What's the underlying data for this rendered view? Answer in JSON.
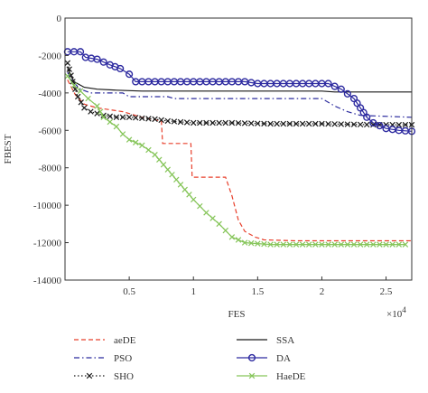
{
  "chart_data": {
    "type": "line",
    "xlabel": "FES",
    "ylabel": "FBEST",
    "x_multiplier_label": "×10",
    "x_multiplier_exp": "4",
    "xlim": [
      0,
      27000
    ],
    "ylim": [
      -14000,
      0
    ],
    "xticks": [
      {
        "value": 5000,
        "label": "0.5"
      },
      {
        "value": 10000,
        "label": "1"
      },
      {
        "value": 15000,
        "label": "1.5"
      },
      {
        "value": 20000,
        "label": "2"
      },
      {
        "value": 25000,
        "label": "2.5"
      }
    ],
    "yticks": [
      {
        "value": 0,
        "label": "0"
      },
      {
        "value": -2000,
        "label": "-2000"
      },
      {
        "value": -4000,
        "label": "-4000"
      },
      {
        "value": -6000,
        "label": "-6000"
      },
      {
        "value": -8000,
        "label": "-8000"
      },
      {
        "value": -10000,
        "label": "-10000"
      },
      {
        "value": -12000,
        "label": "-12000"
      },
      {
        "value": -14000,
        "label": "-14000"
      }
    ],
    "grid": false,
    "legend_position": "bottom",
    "series": [
      {
        "name": "aeDE",
        "color": "#e8402c",
        "style": "dashed",
        "marker": "none",
        "points": [
          [
            200,
            -3300
          ],
          [
            800,
            -4100
          ],
          [
            1500,
            -4600
          ],
          [
            2500,
            -4800
          ],
          [
            3500,
            -4900
          ],
          [
            4500,
            -5000
          ],
          [
            6000,
            -5300
          ],
          [
            7500,
            -5500
          ],
          [
            7600,
            -6700
          ],
          [
            9800,
            -6700
          ],
          [
            9900,
            -8500
          ],
          [
            12500,
            -8500
          ],
          [
            13000,
            -9500
          ],
          [
            13500,
            -10800
          ],
          [
            14000,
            -11400
          ],
          [
            14800,
            -11700
          ],
          [
            15500,
            -11850
          ],
          [
            18000,
            -11900
          ],
          [
            26000,
            -11900
          ],
          [
            27000,
            -11900
          ]
        ]
      },
      {
        "name": "PSO",
        "color": "#2b2b9e",
        "style": "dashdot",
        "marker": "none",
        "points": [
          [
            200,
            -2900
          ],
          [
            600,
            -3400
          ],
          [
            1200,
            -3800
          ],
          [
            2000,
            -4000
          ],
          [
            4500,
            -4000
          ],
          [
            5000,
            -4200
          ],
          [
            8000,
            -4200
          ],
          [
            8500,
            -4300
          ],
          [
            20000,
            -4300
          ],
          [
            21000,
            -4700
          ],
          [
            22000,
            -5000
          ],
          [
            23000,
            -5200
          ],
          [
            27000,
            -5300
          ]
        ]
      },
      {
        "name": "SHO",
        "color": "#1a1a1a",
        "style": "dotted",
        "marker": "x",
        "points": [
          [
            200,
            -2400
          ],
          [
            600,
            -3400
          ],
          [
            1000,
            -4200
          ],
          [
            1500,
            -4800
          ],
          [
            2000,
            -5000
          ],
          [
            3000,
            -5200
          ],
          [
            4000,
            -5300
          ],
          [
            5000,
            -5300
          ],
          [
            6000,
            -5350
          ],
          [
            7000,
            -5400
          ],
          [
            8000,
            -5500
          ],
          [
            10000,
            -5600
          ],
          [
            13000,
            -5600
          ],
          [
            16000,
            -5650
          ],
          [
            20000,
            -5650
          ],
          [
            24000,
            -5700
          ],
          [
            27000,
            -5700
          ]
        ]
      },
      {
        "name": "SSA",
        "color": "#1a1a1a",
        "style": "solid",
        "marker": "none",
        "points": [
          [
            200,
            -2700
          ],
          [
            700,
            -3400
          ],
          [
            1500,
            -3700
          ],
          [
            2500,
            -3800
          ],
          [
            4000,
            -3850
          ],
          [
            6000,
            -3900
          ],
          [
            9000,
            -3900
          ],
          [
            12000,
            -3900
          ],
          [
            15000,
            -3900
          ],
          [
            18000,
            -3900
          ],
          [
            20000,
            -3900
          ],
          [
            21000,
            -3950
          ],
          [
            27000,
            -3950
          ]
        ]
      },
      {
        "name": "DA",
        "color": "#2d2aa0",
        "style": "solid",
        "marker": "o",
        "points": [
          [
            200,
            -1800
          ],
          [
            1200,
            -1800
          ],
          [
            1600,
            -2100
          ],
          [
            2500,
            -2200
          ],
          [
            3500,
            -2500
          ],
          [
            4300,
            -2700
          ],
          [
            5000,
            -3000
          ],
          [
            5500,
            -3400
          ],
          [
            7500,
            -3400
          ],
          [
            10000,
            -3400
          ],
          [
            12500,
            -3400
          ],
          [
            14000,
            -3400
          ],
          [
            15000,
            -3500
          ],
          [
            17000,
            -3500
          ],
          [
            19000,
            -3500
          ],
          [
            20500,
            -3500
          ],
          [
            21500,
            -3800
          ],
          [
            22500,
            -4300
          ],
          [
            23000,
            -4800
          ],
          [
            23500,
            -5300
          ],
          [
            24000,
            -5600
          ],
          [
            25000,
            -5900
          ],
          [
            26000,
            -6000
          ],
          [
            27000,
            -6050
          ]
        ]
      },
      {
        "name": "HaeDE",
        "color": "#86c55a",
        "style": "solid",
        "marker": "x",
        "points": [
          [
            200,
            -3100
          ],
          [
            700,
            -3600
          ],
          [
            1200,
            -3900
          ],
          [
            1800,
            -4300
          ],
          [
            2500,
            -4700
          ],
          [
            3000,
            -5300
          ],
          [
            4000,
            -5800
          ],
          [
            4500,
            -6200
          ],
          [
            5000,
            -6500
          ],
          [
            6000,
            -6800
          ],
          [
            7000,
            -7300
          ],
          [
            8000,
            -8100
          ],
          [
            9000,
            -8900
          ],
          [
            10000,
            -9700
          ],
          [
            11000,
            -10400
          ],
          [
            12000,
            -11000
          ],
          [
            13000,
            -11700
          ],
          [
            14000,
            -12000
          ],
          [
            15000,
            -12050
          ],
          [
            16000,
            -12100
          ],
          [
            20000,
            -12100
          ],
          [
            24000,
            -12100
          ],
          [
            26500,
            -12100
          ]
        ]
      }
    ]
  }
}
